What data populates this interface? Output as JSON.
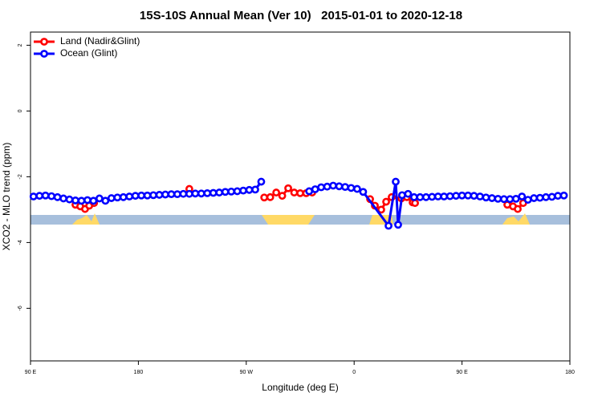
{
  "chart_data": {
    "type": "line",
    "title": "15S-10S Annual Mean (Ver 10)   2015-01-01 to 2020-12-18",
    "x_label": "Longitude (deg E)",
    "y_label": "XCO2 - MLO trend (ppm)",
    "xlim": [
      90,
      540
    ],
    "ylim": [
      -7.6,
      2.4
    ],
    "xticks": [
      {
        "value": 90,
        "label": "90 E"
      },
      180,
      {
        "value": 270,
        "label": "90 W"
      },
      {
        "value": 360,
        "label": "0"
      },
      {
        "value": 450,
        "label": "90 E"
      },
      {
        "value": 540,
        "label": "180"
      }
    ],
    "yticks": [
      2,
      0,
      -2,
      -4,
      -6
    ],
    "legend": "topleft",
    "series": [
      {
        "name": "Land (Nadir&Glint)",
        "color": "#ff0000",
        "x": [
          127.5,
          131.5,
          135.5,
          139,
          143,
          null,
          222.5,
          null,
          285,
          290,
          295,
          300,
          305,
          310,
          315,
          320,
          325,
          null,
          373.3,
          377.3,
          382.6,
          386.7,
          391.3,
          399.4,
          404,
          408.8,
          410.8,
          null,
          487.8,
          492.5,
          496.5,
          501
        ],
        "values": [
          -2.85,
          -2.9,
          -2.98,
          -2.88,
          -2.8,
          null,
          -2.37,
          null,
          -2.63,
          -2.62,
          -2.48,
          -2.58,
          -2.35,
          -2.48,
          -2.5,
          -2.5,
          -2.48,
          null,
          -2.68,
          -2.88,
          -3.0,
          -2.76,
          -2.62,
          -2.66,
          -2.62,
          -2.78,
          -2.8,
          null,
          -2.85,
          -2.9,
          -2.98,
          -2.8
        ]
      },
      {
        "name": "Ocean (Glint)",
        "color": "#0000ff",
        "x": [
          92.5,
          97.5,
          102.5,
          107.5,
          112.5,
          117.5,
          122.5,
          127.5,
          132.5,
          137.5,
          142.5,
          147.5,
          152.5,
          157.5,
          162.5,
          167.5,
          172.5,
          177.5,
          182.5,
          187.5,
          192.5,
          197.5,
          202.5,
          207.5,
          212.5,
          217.5,
          222.5,
          227.5,
          232.5,
          237.5,
          242.5,
          247.5,
          252.5,
          257.5,
          262.5,
          267.5,
          272.5,
          277.5,
          282.5,
          null,
          322.5,
          327.5,
          332.5,
          337.5,
          342.5,
          347.5,
          352.5,
          357.5,
          362.5,
          367.5,
          388.7,
          394.7,
          396.7,
          400,
          405,
          410,
          415,
          420,
          425,
          430,
          435,
          440,
          445,
          450,
          455,
          460,
          465,
          470,
          475,
          480,
          485,
          490,
          495,
          500,
          505,
          510,
          515,
          520,
          525,
          530,
          535
        ],
        "values": [
          -2.6,
          -2.58,
          -2.57,
          -2.59,
          -2.62,
          -2.66,
          -2.69,
          -2.72,
          -2.73,
          -2.71,
          -2.73,
          -2.66,
          -2.73,
          -2.65,
          -2.63,
          -2.62,
          -2.6,
          -2.58,
          -2.57,
          -2.57,
          -2.56,
          -2.55,
          -2.54,
          -2.53,
          -2.53,
          -2.52,
          -2.52,
          -2.51,
          -2.51,
          -2.5,
          -2.49,
          -2.48,
          -2.46,
          -2.45,
          -2.44,
          -2.42,
          -2.4,
          -2.39,
          -2.15,
          null,
          -2.44,
          -2.38,
          -2.32,
          -2.3,
          -2.27,
          -2.29,
          -2.31,
          -2.34,
          -2.37,
          -2.46,
          -3.49,
          -2.15,
          -3.46,
          -2.56,
          -2.52,
          -2.62,
          -2.62,
          -2.62,
          -2.61,
          -2.6,
          -2.6,
          -2.59,
          -2.58,
          -2.57,
          -2.57,
          -2.58,
          -2.6,
          -2.63,
          -2.65,
          -2.67,
          -2.68,
          -2.68,
          -2.67,
          -2.6,
          -2.7,
          -2.65,
          -2.64,
          -2.62,
          -2.61,
          -2.58,
          -2.57
        ]
      }
    ]
  }
}
